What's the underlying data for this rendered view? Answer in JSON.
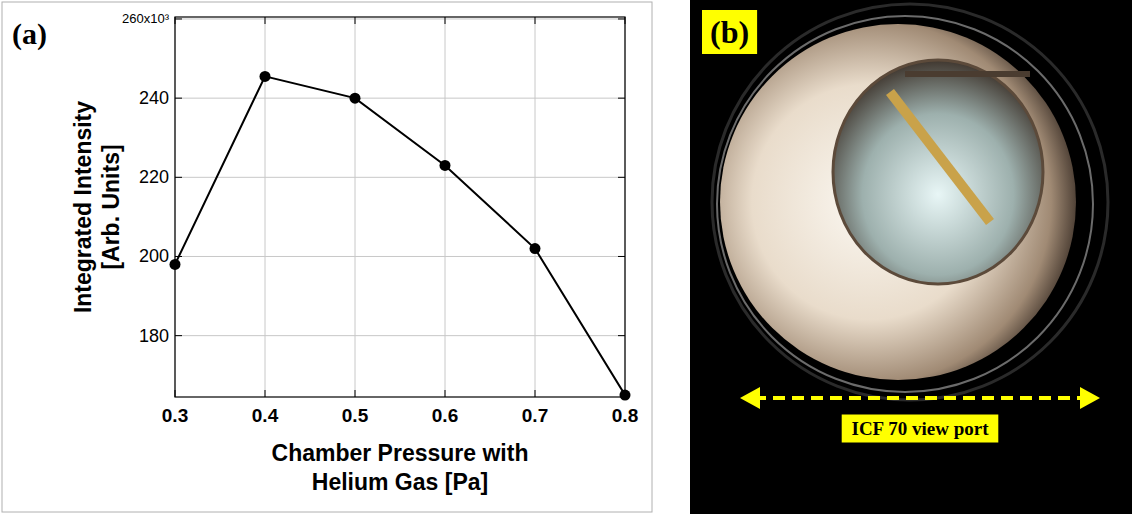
{
  "chart_data": {
    "type": "line",
    "panel_label": "(a)",
    "x_label": "Chamber Pressure with Helium Gas [Pa]",
    "y_label": "Integrated Intensity [Arb. Units]",
    "x": [
      0.3,
      0.4,
      0.5,
      0.6,
      0.7,
      0.8
    ],
    "values": [
      198,
      245.5,
      240,
      223,
      202,
      165
    ],
    "color": "#000000",
    "marker": "circle",
    "line_style": "solid",
    "xlim": [
      0.3,
      0.8
    ],
    "ylim": [
      164.5,
      260.5
    ],
    "xticks": [
      0.3,
      0.4,
      0.5,
      0.6,
      0.7,
      0.8
    ],
    "yticks": [
      180,
      200,
      220,
      240,
      {
        "value": 260,
        "label": "260x10³"
      }
    ],
    "grid": true
  },
  "photo": {
    "panel_label": "(b)",
    "caption": "ICF 70 view port"
  }
}
